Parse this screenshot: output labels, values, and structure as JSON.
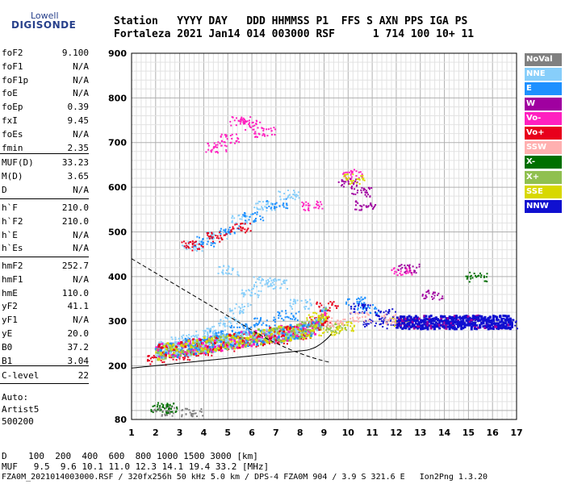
{
  "logo": {
    "line1": "Lowell",
    "line2": "DIGISONDE"
  },
  "header": {
    "row1": "Station   YYYY DAY   DDD HHMMSS P1  FFS S AXN PPS IGA PS",
    "row2": "Fortaleza 2021 Jan14 014 003000 RSF      1 714 100 10+ 11"
  },
  "params": {
    "g1": [
      {
        "name": "foF2",
        "value": "9.100"
      },
      {
        "name": "foF1",
        "value": "N/A"
      },
      {
        "name": "foF1p",
        "value": "N/A"
      },
      {
        "name": "foE",
        "value": "N/A"
      },
      {
        "name": "foEp",
        "value": "0.39"
      },
      {
        "name": "fxI",
        "value": "9.45"
      },
      {
        "name": "foEs",
        "value": "N/A"
      },
      {
        "name": "fmin",
        "value": "2.35"
      }
    ],
    "g2": [
      {
        "name": "MUF(D)",
        "value": "33.23"
      },
      {
        "name": "M(D)",
        "value": "3.65"
      },
      {
        "name": "D",
        "value": "N/A"
      }
    ],
    "g3": [
      {
        "name": "h`F",
        "value": "210.0"
      },
      {
        "name": "h`F2",
        "value": "210.0"
      },
      {
        "name": "h`E",
        "value": "N/A"
      },
      {
        "name": "h`Es",
        "value": "N/A"
      }
    ],
    "g4": [
      {
        "name": "hmF2",
        "value": "252.7"
      },
      {
        "name": "hmF1",
        "value": "N/A"
      },
      {
        "name": "hmE",
        "value": "110.0"
      },
      {
        "name": "yF2",
        "value": "41.1"
      },
      {
        "name": "yF1",
        "value": "N/A"
      },
      {
        "name": "yE",
        "value": "20.0"
      },
      {
        "name": "B0",
        "value": "37.2"
      },
      {
        "name": "B1",
        "value": "3.04"
      }
    ],
    "g5": [
      {
        "name": "C-level",
        "value": "22"
      }
    ]
  },
  "footer": {
    "auto": "Auto:",
    "artist": "Artist5",
    "code": "500200"
  },
  "bottom": {
    "d_line": "D    100  200  400  600  800 1000 1500 3000 [km]",
    "muf_line": "MUF   9.5  9.6 10.1 11.0 12.3 14.1 19.4 33.2 [MHz]",
    "file_line": "FZA0M_2021014003000.RSF / 320fx256h 50 kHz 5.0 km / DPS-4 FZA0M 904 / 3.9 S 321.6 E   Ion2Png 1.3.20"
  },
  "legend": [
    {
      "label": "NoVal",
      "color": "#808080"
    },
    {
      "label": "NNE",
      "color": "#87cefa"
    },
    {
      "label": "E",
      "color": "#1e90ff"
    },
    {
      "label": "W",
      "color": "#a000a0"
    },
    {
      "label": "Vo-",
      "color": "#ff20c0"
    },
    {
      "label": "Vo+",
      "color": "#e8001c"
    },
    {
      "label": "SSW",
      "color": "#ffb0b0"
    },
    {
      "label": "X-",
      "color": "#007000"
    },
    {
      "label": "X+",
      "color": "#90c050"
    },
    {
      "label": "SSE",
      "color": "#d8d800"
    },
    {
      "label": "NNW",
      "color": "#1010d0"
    }
  ],
  "chart_data": {
    "type": "scatter",
    "xlabel": "",
    "ylabel": "",
    "xlim": [
      1,
      17
    ],
    "ylim": [
      80,
      900
    ],
    "xticks": [
      1,
      2,
      3,
      4,
      5,
      6,
      7,
      8,
      9,
      10,
      11,
      12,
      13,
      14,
      15,
      16,
      17
    ],
    "yticks": [
      80,
      200,
      300,
      400,
      500,
      600,
      700,
      800,
      900
    ],
    "grid": true,
    "series": [
      {
        "name": "NNE",
        "values": [
          [
            2.5,
            245
          ],
          [
            3.0,
            255
          ],
          [
            3.5,
            262
          ],
          [
            4.0,
            270
          ],
          [
            4.5,
            280
          ],
          [
            5.0,
            300
          ],
          [
            5.5,
            330
          ],
          [
            6.0,
            365
          ],
          [
            6.5,
            390
          ],
          [
            3.5,
            470
          ],
          [
            4.5,
            495
          ],
          [
            5.5,
            530
          ],
          [
            6.5,
            560
          ],
          [
            7.5,
            585
          ],
          [
            5.0,
            415
          ],
          [
            7.0,
            385
          ],
          [
            8.0,
            340
          ]
        ]
      },
      {
        "name": "E",
        "values": [
          [
            2.5,
            240
          ],
          [
            3.5,
            255
          ],
          [
            4.5,
            270
          ],
          [
            5.5,
            285
          ],
          [
            6.5,
            300
          ],
          [
            7.5,
            315
          ],
          [
            4.0,
            480
          ],
          [
            5.0,
            505
          ],
          [
            6.0,
            535
          ],
          [
            7.0,
            565
          ],
          [
            10.3,
            345
          ],
          [
            10.8,
            330
          ]
        ]
      },
      {
        "name": "Vo+",
        "values": [
          [
            2.0,
            215
          ],
          [
            3.0,
            225
          ],
          [
            4.0,
            235
          ],
          [
            5.0,
            245
          ],
          [
            6.0,
            255
          ],
          [
            7.0,
            262
          ],
          [
            8.0,
            270
          ],
          [
            8.8,
            300
          ],
          [
            9.1,
            335
          ],
          [
            3.5,
            470
          ],
          [
            4.5,
            490
          ],
          [
            5.5,
            510
          ]
        ]
      },
      {
        "name": "Vo-",
        "values": [
          [
            4.5,
            690
          ],
          [
            5.0,
            710
          ],
          [
            5.5,
            750
          ],
          [
            6.0,
            740
          ],
          [
            6.5,
            725
          ],
          [
            8.5,
            560
          ],
          [
            10.2,
            630
          ],
          [
            12.2,
            415
          ]
        ]
      },
      {
        "name": "W",
        "values": [
          [
            10.0,
            610
          ],
          [
            10.5,
            590
          ],
          [
            12.5,
            420
          ],
          [
            13.5,
            360
          ],
          [
            10.7,
            560
          ]
        ]
      },
      {
        "name": "NNW",
        "values": [
          [
            11.0,
            300
          ],
          [
            12.0,
            296
          ],
          [
            13.0,
            298
          ],
          [
            14.0,
            300
          ],
          [
            14.8,
            302
          ],
          [
            15.5,
            299
          ],
          [
            16.2,
            297
          ],
          [
            16.8,
            295
          ],
          [
            10.5,
            330
          ],
          [
            11.5,
            320
          ]
        ]
      },
      {
        "name": "SSE",
        "values": [
          [
            9.2,
            280
          ],
          [
            9.8,
            290
          ],
          [
            10.2,
            620
          ],
          [
            12.2,
            300
          ],
          [
            8.7,
            310
          ]
        ]
      },
      {
        "name": "X+",
        "values": [
          [
            7.5,
            280
          ],
          [
            8.5,
            290
          ],
          [
            9.5,
            285
          ]
        ]
      },
      {
        "name": "X-",
        "values": [
          [
            2.2,
            105
          ],
          [
            2.5,
            108
          ],
          [
            15.3,
            400
          ]
        ]
      },
      {
        "name": "SSW",
        "values": [
          [
            9.5,
            300
          ],
          [
            10.5,
            310
          ],
          [
            11.8,
            306
          ]
        ]
      },
      {
        "name": "NoVal",
        "values": [
          [
            2.3,
            100
          ],
          [
            3.5,
            98
          ]
        ]
      }
    ]
  }
}
